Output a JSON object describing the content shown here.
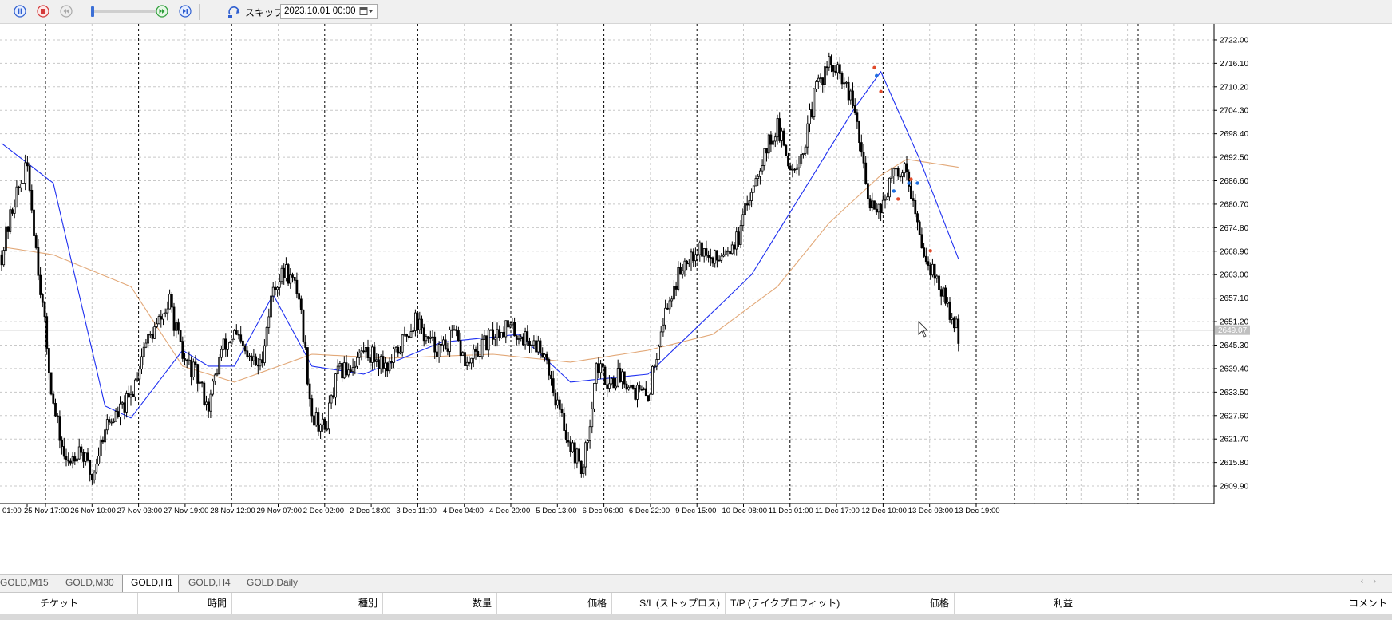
{
  "toolbar": {
    "skip_label": "スキップ",
    "date_value": "2023.10.01 00:00",
    "speed_value": 0.02,
    "icons": [
      "pause-icon",
      "stop-icon",
      "step-back-icon",
      "speed-slider",
      "fast-forward-icon",
      "step-forward-icon",
      "skip-icon",
      "calendar-icon"
    ]
  },
  "colors": {
    "bull_body": "#ffffff",
    "bear_body": "#000000",
    "ma_fast": "#1e2ff0",
    "ma_slow": "#e2a878",
    "grid": "#c8c8c8",
    "current_price_bg": "#c0c0c0"
  },
  "chart": {
    "symbol": "GOLD",
    "timeframe": "H1",
    "price_axis": {
      "min": 2605.5,
      "max": 2726.0,
      "ticks": [
        "2722.00",
        "2716.10",
        "2710.20",
        "2704.30",
        "2698.40",
        "2692.50",
        "2686.60",
        "2680.70",
        "2674.80",
        "2668.90",
        "2663.00",
        "2657.10",
        "2651.20",
        "2645.30",
        "2639.40",
        "2633.50",
        "2627.60",
        "2621.70",
        "2615.80",
        "2609.90"
      ]
    },
    "current_price": "2649.07",
    "time_labels": [
      "01:00",
      "25 Nov 17:00",
      "26 Nov 10:00",
      "27 Nov 03:00",
      "27 Nov 19:00",
      "28 Nov 12:00",
      "29 Nov 07:00",
      "2 Dec 02:00",
      "2 Dec 18:00",
      "3 Dec 11:00",
      "4 Dec 04:00",
      "4 Dec 20:00",
      "5 Dec 13:00",
      "6 Dec 06:00",
      "6 Dec 22:00",
      "9 Dec 15:00",
      "10 Dec 08:00",
      "11 Dec 01:00",
      "11 Dec 17:00",
      "12 Dec 10:00",
      "13 Dec 03:00",
      "13 Dec 19:00"
    ]
  },
  "chart_data": {
    "type": "candlestick",
    "symbol": "GOLD",
    "timeframe": "H1",
    "ylim": [
      2605.5,
      2726.0
    ],
    "series": [
      {
        "points": [
          [
            0,
            2668
          ],
          [
            6,
            2682
          ],
          [
            12,
            2690
          ],
          [
            18,
            2660
          ],
          [
            24,
            2630
          ],
          [
            30,
            2615
          ],
          [
            36,
            2620
          ],
          [
            42,
            2612
          ],
          [
            48,
            2625
          ],
          [
            54,
            2628
          ],
          [
            60,
            2632
          ],
          [
            66,
            2645
          ],
          [
            72,
            2650
          ],
          [
            78,
            2656
          ],
          [
            84,
            2642
          ],
          [
            90,
            2638
          ],
          [
            96,
            2630
          ],
          [
            102,
            2644
          ],
          [
            108,
            2648
          ],
          [
            114,
            2642
          ],
          [
            120,
            2640
          ],
          [
            126,
            2660
          ],
          [
            132,
            2664
          ],
          [
            138,
            2658
          ],
          [
            144,
            2628
          ],
          [
            150,
            2624
          ],
          [
            156,
            2638
          ],
          [
            162,
            2640
          ],
          [
            168,
            2644
          ],
          [
            174,
            2642
          ],
          [
            180,
            2640
          ],
          [
            186,
            2646
          ],
          [
            192,
            2652
          ],
          [
            198,
            2646
          ],
          [
            204,
            2644
          ],
          [
            210,
            2648
          ],
          [
            216,
            2640
          ],
          [
            222,
            2644
          ],
          [
            228,
            2648
          ],
          [
            234,
            2650
          ],
          [
            240,
            2648
          ],
          [
            246,
            2646
          ],
          [
            252,
            2644
          ],
          [
            258,
            2630
          ],
          [
            264,
            2620
          ],
          [
            270,
            2614
          ],
          [
            276,
            2640
          ],
          [
            282,
            2636
          ],
          [
            288,
            2638
          ],
          [
            294,
            2634
          ],
          [
            300,
            2632
          ],
          [
            306,
            2650
          ],
          [
            312,
            2660
          ],
          [
            318,
            2668
          ],
          [
            324,
            2670
          ],
          [
            330,
            2666
          ],
          [
            336,
            2670
          ],
          [
            342,
            2672
          ],
          [
            348,
            2685
          ],
          [
            354,
            2694
          ],
          [
            360,
            2700
          ],
          [
            366,
            2690
          ],
          [
            372,
            2694
          ],
          [
            378,
            2710
          ],
          [
            384,
            2716
          ],
          [
            390,
            2712
          ],
          [
            396,
            2704
          ],
          [
            402,
            2682
          ],
          [
            408,
            2680
          ],
          [
            414,
            2688
          ],
          [
            420,
            2690
          ],
          [
            426,
            2672
          ],
          [
            432,
            2664
          ],
          [
            438,
            2656
          ],
          [
            444,
            2648
          ]
        ]
      },
      {
        "name": "",
        "points": [
          [
            0,
            2696
          ],
          [
            24,
            2686
          ],
          [
            48,
            2630
          ],
          [
            60,
            2627
          ],
          [
            84,
            2644
          ],
          [
            96,
            2640
          ],
          [
            108,
            2640
          ],
          [
            126,
            2658
          ],
          [
            144,
            2640
          ],
          [
            168,
            2638
          ],
          [
            204,
            2646
          ],
          [
            240,
            2648
          ],
          [
            264,
            2636
          ],
          [
            300,
            2638
          ],
          [
            348,
            2663
          ],
          [
            396,
            2705
          ],
          [
            408,
            2714
          ],
          [
            426,
            2692
          ],
          [
            444,
            2667
          ]
        ]
      },
      {
        "name": "",
        "points": [
          [
            0,
            2670
          ],
          [
            24,
            2668
          ],
          [
            60,
            2660
          ],
          [
            84,
            2640
          ],
          [
            108,
            2636
          ],
          [
            144,
            2643
          ],
          [
            180,
            2642
          ],
          [
            228,
            2643
          ],
          [
            264,
            2641
          ],
          [
            300,
            2644
          ],
          [
            330,
            2648
          ],
          [
            360,
            2660
          ],
          [
            384,
            2676
          ],
          [
            408,
            2688
          ],
          [
            420,
            2692
          ],
          [
            444,
            2690
          ]
        ]
      }
    ]
  },
  "tabs": [
    {
      "label": "GOLD,M15",
      "active": false
    },
    {
      "label": "GOLD,M30",
      "active": false
    },
    {
      "label": "GOLD,H1",
      "active": true
    },
    {
      "label": "GOLD,H4",
      "active": false
    },
    {
      "label": "GOLD,Daily",
      "active": false
    }
  ],
  "terminal": {
    "columns": [
      "チケット",
      "時間",
      "種別",
      "数量",
      "価格",
      "S/L (ストップロス)",
      "T/P (テイクプロフィット)",
      "価格",
      "利益",
      "コメント"
    ]
  }
}
